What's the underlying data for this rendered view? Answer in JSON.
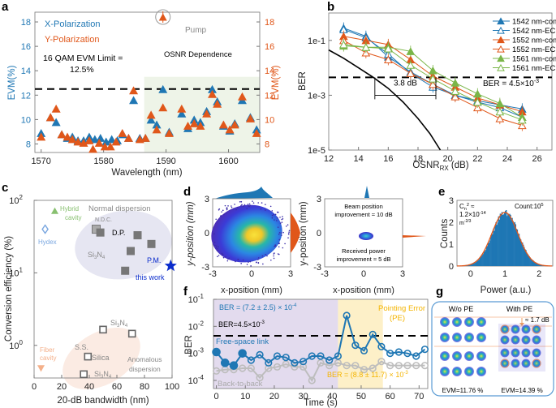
{
  "colors": {
    "blue": "#1f77b4",
    "orange": "#e0571a",
    "green": "#7ab648",
    "gray": "#bdbdbd",
    "darkgray": "#666666",
    "star": "#0a2ccc",
    "shade_green": "#eef4e8",
    "shade_purple": "#e3dbee",
    "shade_yellow": "#fdf0c8",
    "yellow_text": "#f4b400",
    "ellipse_blue": "#e6e6f2",
    "ellipse_orange": "#fbebe3",
    "hydex": "#7aa7e0",
    "hybrid": "#88c070",
    "fiber": "#f4b08a"
  },
  "chart_data": [
    {
      "id": "a",
      "panel_label": "a",
      "type": "scatter",
      "xlabel": "Wavelength (nm)",
      "ylabel_left": "EVM(%)",
      "ylabel_right": "EVM(%)",
      "xlim": [
        1569,
        1605
      ],
      "ylim": [
        7.3,
        18.8
      ],
      "xticks": [
        1570,
        1580,
        1590,
        1600
      ],
      "yticks": [
        8,
        10,
        12,
        14,
        16,
        18
      ],
      "legend": [
        "X-Polarization",
        "Y-Polarization"
      ],
      "threshold": {
        "value": 12.5,
        "label_line1": "16 QAM EVM Limit =",
        "label_line2": "12.5%"
      },
      "shaded_region": {
        "x_from": 1586.5,
        "x_to": 1605,
        "label": "OSNR Dependence"
      },
      "pump": {
        "x": 1589.5,
        "y": 18.4,
        "label": "Pump"
      },
      "series": [
        {
          "name": "X-Polarization",
          "x": [
            1570,
            1571.5,
            1572.4,
            1573.3,
            1574.2,
            1575,
            1575.9,
            1576.8,
            1577.7,
            1578.6,
            1579.5,
            1580.4,
            1581.3,
            1582.2,
            1583.1,
            1584,
            1584.8,
            1585.8,
            1586.7,
            1587.6,
            1588.5,
            1589.5,
            1590.5,
            1592.5,
            1593.5,
            1594.5,
            1595.5,
            1596.5,
            1597.4,
            1598.2,
            1599.2,
            1600.2,
            1601,
            1602.2,
            1603.5,
            1604.5
          ],
          "y": [
            8.9,
            10.2,
            9.8,
            8.8,
            8.5,
            8.6,
            8.3,
            8.3,
            8.6,
            8.4,
            8.5,
            8.2,
            8.4,
            8.3,
            8.8,
            8.5,
            11.6,
            8.5,
            8.5,
            10.0,
            9.6,
            12.5,
            9.0,
            10.5,
            9.3,
            10.0,
            9.8,
            10.7,
            12.5,
            11.5,
            9.5,
            9.1,
            9.7,
            11.6,
            10.2,
            9.2
          ]
        },
        {
          "name": "Y-Polarization",
          "x": [
            1570,
            1571.5,
            1572.4,
            1573.3,
            1574.2,
            1575,
            1575.9,
            1576.8,
            1577.7,
            1578.3,
            1579.3,
            1580.2,
            1581.1,
            1582,
            1583,
            1584,
            1584.8,
            1585.8,
            1586.7,
            1587.6,
            1588.5,
            1589.5,
            1590.5,
            1592.5,
            1593.5,
            1594.5,
            1595.5,
            1596.5,
            1597.4,
            1598.2,
            1599.2,
            1600.2,
            1601,
            1602.2,
            1603.5,
            1604.5
          ],
          "y": [
            8.6,
            10.2,
            10.9,
            8.8,
            8.6,
            8.4,
            8.2,
            8.1,
            8.3,
            7.6,
            8.1,
            7.8,
            7.8,
            8.2,
            8.9,
            8.5,
            12.4,
            8.4,
            8.5,
            10.4,
            9.2,
            11.0,
            8.9,
            10.9,
            9.5,
            9.7,
            9.5,
            10.5,
            12.1,
            11.3,
            9.6,
            9.2,
            9.6,
            11.9,
            10.1,
            8.9
          ]
        }
      ]
    },
    {
      "id": "b",
      "panel_label": "b",
      "type": "line",
      "xlabel": "OSNR",
      "xlabel_sub": "RX",
      "xlabel_unit": " (dB)",
      "ylabel": "BER",
      "yscale": "log",
      "xlim": [
        12,
        27
      ],
      "ylim_log10": [
        -5,
        0
      ],
      "xticks": [
        12,
        14,
        16,
        18,
        20,
        22,
        24,
        26
      ],
      "ytick_labels": [
        {
          "v": -1,
          "t": "1e-1"
        },
        {
          "v": -3,
          "t": "1e-3"
        },
        {
          "v": -5,
          "t": "1e-5"
        }
      ],
      "threshold": {
        "log10": -2.35,
        "label": "BER = 4.5×10",
        "label_exp": "-3"
      },
      "annotation": {
        "label": "3.8 dB",
        "x_from": 15.1,
        "x_to": 19.2
      },
      "x": [
        13,
        14.5,
        16,
        17.5,
        19,
        20.5,
        22,
        23.5,
        25
      ],
      "series": [
        {
          "name": "1542 nm-comb",
          "color": "blue",
          "filled": true,
          "log10": [
            -0.55,
            -0.85,
            -1.6,
            -2.15,
            -2.6,
            -3.0,
            -3.2,
            -3.35,
            -3.5
          ]
        },
        {
          "name": "1542 nm-ECDL",
          "color": "blue",
          "filled": false,
          "log10": [
            -0.6,
            -0.9,
            -1.5,
            -2.2,
            -2.7,
            -3.0,
            -3.25,
            -3.45,
            -3.8
          ]
        },
        {
          "name": "1552 nm-comb",
          "color": "orange",
          "filled": true,
          "log10": [
            -0.85,
            -1.0,
            -1.15,
            -1.7,
            -2.3,
            -2.7,
            -3.1,
            -3.35,
            -3.6
          ]
        },
        {
          "name": "1552 nm-ECDL",
          "color": "orange",
          "filled": false,
          "log10": [
            -1.0,
            -1.45,
            -1.7,
            -2.2,
            -2.6,
            -3.05,
            -3.45,
            -3.85,
            -4.1
          ]
        },
        {
          "name": "1561 nm-comb",
          "color": "green",
          "filled": true,
          "log10": [
            -1.2,
            -1.25,
            -1.25,
            -1.4,
            -2.1,
            -2.55,
            -2.95,
            -3.3,
            -3.8
          ]
        },
        {
          "name": "1561 nm-ECDL",
          "color": "green",
          "filled": false,
          "log10": [
            -1.15,
            -1.25,
            -1.3,
            -1.9,
            -2.4,
            -2.85,
            -3.25,
            -3.6,
            -3.9
          ]
        }
      ],
      "theory_curve": {
        "x": [
          12,
          13,
          14,
          15,
          16,
          17,
          18,
          18.8,
          19.5
        ],
        "log10": [
          -1.35,
          -1.65,
          -2.0,
          -2.35,
          -2.75,
          -3.25,
          -3.85,
          -4.4,
          -5.0
        ]
      }
    },
    {
      "id": "c",
      "panel_label": "c",
      "type": "scatter",
      "xlabel": "20-dB bandwidth (nm)",
      "ylabel": "Conversion efficiency (%)",
      "yscale": "log",
      "xlim": [
        0,
        100
      ],
      "ylim_log10": [
        -0.45,
        2
      ],
      "xticks": [
        0,
        20,
        40,
        60,
        80,
        100
      ],
      "ytick_exps": [
        0,
        1,
        2
      ],
      "regions": [
        {
          "label": "Normal dispersion",
          "color": "ellipse_blue"
        },
        {
          "label_line1": "Anomalous",
          "label_line2": "dispersion",
          "color": "ellipse_orange"
        }
      ],
      "points_normal": [
        {
          "x": 45,
          "y": 40,
          "label": "N.D.C.",
          "light": true
        },
        {
          "x": 48,
          "y": 36
        },
        {
          "x": 75,
          "y": 33
        },
        {
          "x": 70,
          "y": 20
        },
        {
          "x": 85,
          "y": 25
        },
        {
          "x": 66,
          "y": 10.7
        }
      ],
      "points_anomalous": [
        {
          "x": 50,
          "y": 1.65
        },
        {
          "x": 71,
          "y": 1.45
        },
        {
          "x": 39,
          "y": 0.7
        },
        {
          "x": 36,
          "y": 0.4
        }
      ],
      "labels": {
        "dp": "D.P.",
        "si3n4_a": "Si",
        "si3n4_b": "3",
        "si3n4_c": "N",
        "si3n4_d": "4",
        "pm": "P.M.",
        "this_work": "this work",
        "ss": "S.S.",
        "silica": "Silica",
        "hybrid1": "Hybrid",
        "hybrid2": "cavity",
        "hydex": "Hydex",
        "fiber1": "Fiber",
        "fiber2": "cavity"
      },
      "this_work": {
        "x": 99,
        "y": 12.5
      },
      "hybrid_cavity": {
        "x": 15,
        "y": 72
      },
      "hydex": {
        "x": 8,
        "y": 40
      },
      "fiber_cavity": {
        "x": 5,
        "y": 0.48
      }
    },
    {
      "id": "d",
      "panel_label": "d",
      "type": "heatmap",
      "xlabel": "x-position (mm)",
      "ylabel": "y-position (mm)",
      "xlim": [
        -3,
        3
      ],
      "ylim": [
        -3,
        3
      ],
      "xticks": [
        -3,
        0,
        3
      ],
      "yticks": [
        -3,
        0,
        3
      ],
      "right_annotation_top_1": "Beam position",
      "right_annotation_top_2": "improvement ≈ 10 dB",
      "right_annotation_bottom_1": "Received power",
      "right_annotation_bottom_2": "improvement ≈ 5 dB"
    },
    {
      "id": "e",
      "panel_label": "e",
      "type": "bar",
      "xlabel": "Power (a.u.)",
      "ylabel": "Counts",
      "xlim": [
        -0.4,
        2.4
      ],
      "ylim": [
        0,
        3
      ],
      "xticks": [
        0,
        1,
        2
      ],
      "yticks": [
        0,
        1,
        2,
        3
      ],
      "fit_mean": 1.0,
      "fit_sigma": 0.38,
      "fit_peak": 2.45,
      "cn2_line1": "C",
      "cn2_sub": "n",
      "cn2_sup": "2",
      "cn2_approx": " ≈",
      "cn2_line2": "1.2×10",
      "cn2_exp": "-14",
      "cn2_unit": "m",
      "cn2_unit_exp": "-2/3",
      "count_label": "Count:10",
      "count_exp": "5"
    },
    {
      "id": "f",
      "panel_label": "f",
      "type": "line",
      "xlabel": "Time (s)",
      "ylabel": "BER",
      "yscale": "log",
      "xlim": [
        -1,
        73
      ],
      "ylim_log10": [
        -4.3,
        -1
      ],
      "xticks": [
        0,
        10,
        20,
        30,
        40,
        50,
        60,
        70
      ],
      "ytick_exps": [
        -1,
        -2,
        -3,
        -4
      ],
      "threshold": {
        "log10": -2.35,
        "label": "BER=4.5×10",
        "label_exp": "-3"
      },
      "regions": [
        {
          "from": -1,
          "to": 42,
          "color": "shade_purple"
        },
        {
          "from": 42,
          "to": 57.5,
          "color": "shade_yellow",
          "label_line1": "Pointing Error",
          "label_line2": "(PE)"
        }
      ],
      "stat_free_space": "BER = (7.2 ± 2.5) × 10",
      "stat_free_space_exp": "-4",
      "stat_pe": "BER = (8.8 ± 11.7) × 10",
      "stat_pe_exp": "-3",
      "x": [
        0,
        3,
        6,
        9,
        12,
        15,
        18,
        21,
        24,
        27,
        30,
        33,
        36,
        39,
        42,
        45,
        48,
        51,
        54,
        57,
        60,
        63,
        66,
        69,
        72
      ],
      "series": [
        {
          "name": "Free-space link",
          "color": "blue",
          "filled_until": 9,
          "log10": [
            -2.95,
            -3.35,
            -3.45,
            -3.0,
            -3.25,
            -3.05,
            -3.35,
            -3.1,
            -3.15,
            -3.35,
            -3.3,
            -3.1,
            -3.1,
            -3.25,
            -3.1,
            -1.6,
            -2.7,
            -2.9,
            -2.3,
            -2.75,
            -3.0,
            -2.95,
            -3.0,
            -3.1,
            -2.85
          ]
        },
        {
          "name": "Back-to-back",
          "color": "gray",
          "log10": [
            -3.65,
            -3.6,
            -3.6,
            -3.55,
            -3.55,
            -3.9,
            -3.55,
            -3.5,
            -3.4,
            -3.5,
            -3.5,
            -4.0,
            -3.35,
            -3.45,
            -3.35,
            -3.45,
            -3.45,
            -3.6,
            -3.55,
            -3.3,
            -3.45,
            -3.45,
            -3.45,
            -3.45,
            -3.45
          ]
        }
      ]
    },
    {
      "id": "g",
      "panel_label": "g",
      "type": "scatter",
      "left_title": "W/o PE",
      "right_title": "With PE",
      "left_evm": "EVM=11.76 %",
      "right_evm": "EVM=14.39 %",
      "power_drop_label": "≈ 1.7 dB"
    }
  ]
}
